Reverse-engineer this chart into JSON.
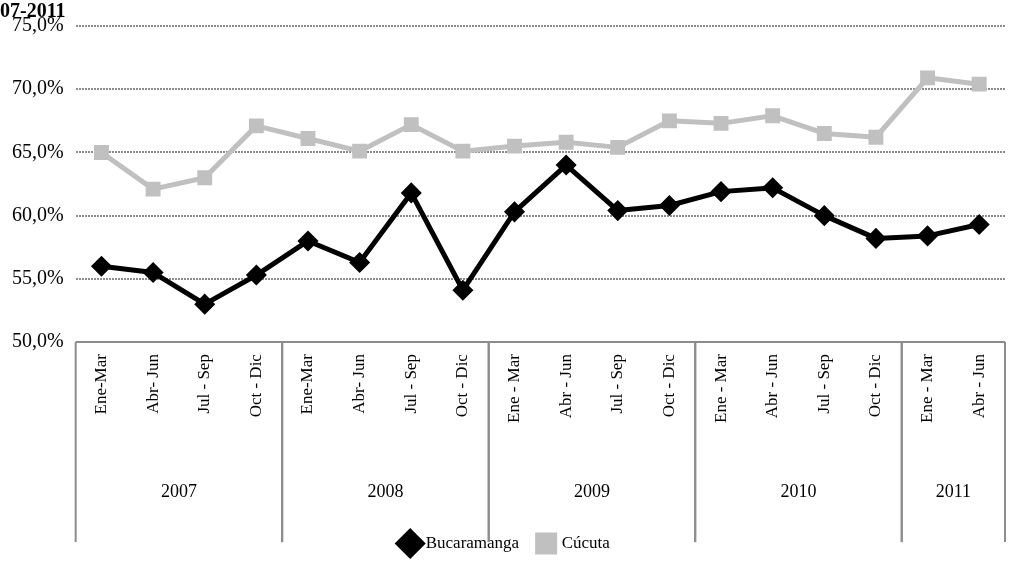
{
  "chart_data": {
    "type": "line",
    "title": "07-2011",
    "categories": [
      "Ene-Mar",
      "Abr- Jun",
      "Jul - Sep",
      "Oct - Dic",
      "Ene-Mar",
      "Abr- Jun",
      "Jul - Sep",
      "Oct - Dic",
      "Ene - Mar",
      "Abr - Jun",
      "Jul - Sep",
      "Oct - Dic",
      "Ene - Mar",
      "Abr - Jun",
      "Jul - Sep",
      "Oct - Dic",
      "Ene - Mar",
      "Abr - Jun"
    ],
    "annotations": [
      "2007",
      "2008",
      "2009",
      "2010",
      "2011"
    ],
    "series": [
      {
        "name": "Bucaramanga",
        "color": "#000000",
        "marker": "diamond",
        "values": [
          56.0,
          55.5,
          53.0,
          55.3,
          58.0,
          56.3,
          61.8,
          54.1,
          60.3,
          64.0,
          60.4,
          60.8,
          61.9,
          62.2,
          60.0,
          58.2,
          58.4,
          59.3
        ]
      },
      {
        "name": "Cúcuta",
        "color": "#c0c0c0",
        "marker": "square",
        "values": [
          65.0,
          62.1,
          63.0,
          67.1,
          66.1,
          65.1,
          67.2,
          65.1,
          65.5,
          65.8,
          65.4,
          67.5,
          67.3,
          67.9,
          66.5,
          66.2,
          70.9,
          70.4
        ]
      }
    ],
    "ylim": [
      50,
      75
    ],
    "yticks": [
      {
        "value": 50,
        "label": "50,0%"
      },
      {
        "value": 55,
        "label": "55,0%"
      },
      {
        "value": 60,
        "label": "60,0%"
      },
      {
        "value": 65,
        "label": "65,0%"
      },
      {
        "value": 70,
        "label": "70,0%"
      },
      {
        "value": 75,
        "label": "75,0%"
      }
    ],
    "grid": "y",
    "legend": "bottom",
    "line_style": "solid"
  }
}
